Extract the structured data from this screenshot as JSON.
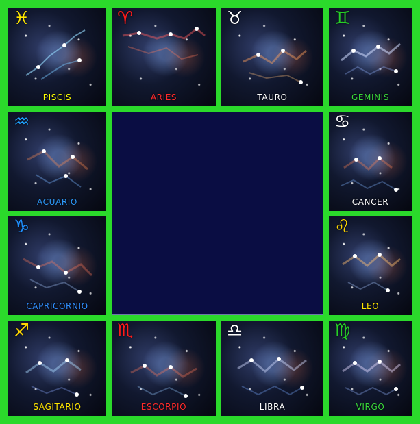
{
  "colors": {
    "frame": "#2bd92b",
    "center": "#0a0d43"
  },
  "tiles": [
    {
      "label": "PISCIS",
      "symbol": "♓",
      "symbol_color": "#ffe600",
      "label_color": "#ffff00"
    },
    {
      "label": "ARIES",
      "symbol": "♈",
      "symbol_color": "#ff1a1a",
      "label_color": "#ff2a2a"
    },
    {
      "label": "TAURO",
      "symbol": "♉",
      "symbol_color": "#ffffff",
      "label_color": "#ffffff"
    },
    {
      "label": "GEMINIS",
      "symbol": "♊",
      "symbol_color": "#27d127",
      "label_color": "#39d639"
    },
    {
      "label": "ACUARIO",
      "symbol": "♒",
      "symbol_color": "#1fa3ff",
      "label_color": "#2d9dff"
    },
    {
      "label": "CANCER",
      "symbol": "♋",
      "symbol_color": "#ffffff",
      "label_color": "#ffffff"
    },
    {
      "label": "CAPRICORNIO",
      "symbol": "♑",
      "symbol_color": "#1f8fff",
      "label_color": "#2f8fff"
    },
    {
      "label": "LEO",
      "symbol": "♌",
      "symbol_color": "#ffd700",
      "label_color": "#ffe600"
    },
    {
      "label": "SAGITARIO",
      "symbol": "♐",
      "symbol_color": "#ffd700",
      "label_color": "#ffe600"
    },
    {
      "label": "ESCORPIO",
      "symbol": "♏",
      "symbol_color": "#ff1a1a",
      "label_color": "#ff2a2a"
    },
    {
      "label": "LIBRA",
      "symbol": "♎",
      "symbol_color": "#ffffff",
      "label_color": "#ffffff"
    },
    {
      "label": "VIRGO",
      "symbol": "♍",
      "symbol_color": "#27d127",
      "label_color": "#39d639"
    }
  ]
}
